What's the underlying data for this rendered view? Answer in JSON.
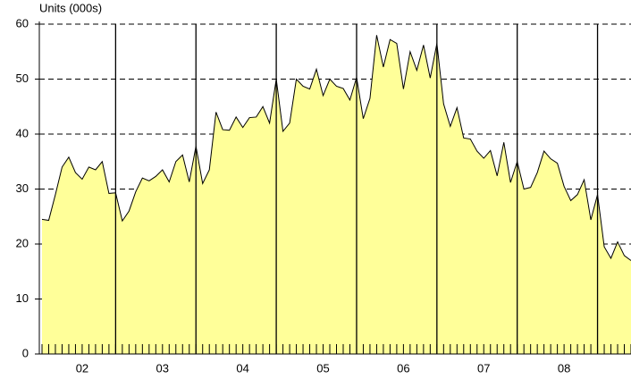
{
  "chart_data": {
    "type": "area",
    "y_label": "Units (000s)",
    "x_labels": [
      "02",
      "03",
      "04",
      "05",
      "06",
      "07",
      "08"
    ],
    "values": [
      24.5,
      24.3,
      29,
      34,
      35.8,
      33,
      31.8,
      34,
      33.5,
      35,
      29.2,
      29.3,
      24.2,
      26,
      29.5,
      32,
      31.5,
      32.3,
      33.5,
      31.3,
      35,
      36.2,
      31.3,
      37.8,
      31,
      33.5,
      44,
      40.8,
      40.7,
      43.1,
      41.2,
      43,
      43.1,
      45,
      42,
      50,
      40.5,
      42,
      50,
      48.7,
      48.2,
      51.8,
      47,
      50,
      48.7,
      48.3,
      46.2,
      50.3,
      42.8,
      46.5,
      58,
      52.2,
      57.2,
      56.5,
      48.2,
      55,
      51.6,
      56.2,
      50.2,
      56.5,
      45.5,
      41.4,
      44.8,
      39.3,
      39.1,
      36.9,
      35.6,
      37,
      32.4,
      38.5,
      31.2,
      35,
      30,
      30.3,
      33,
      36.9,
      35.5,
      34.7,
      30.5,
      27.9,
      29,
      31.7,
      24.4,
      29,
      19.5,
      17.4,
      20.4,
      17.9,
      17
    ],
    "color": "#ffff99",
    "line_color": "#000000",
    "ylim": [
      0,
      60
    ],
    "yticks": [
      0,
      10,
      20,
      30,
      40,
      50,
      60
    ],
    "grid": true
  }
}
